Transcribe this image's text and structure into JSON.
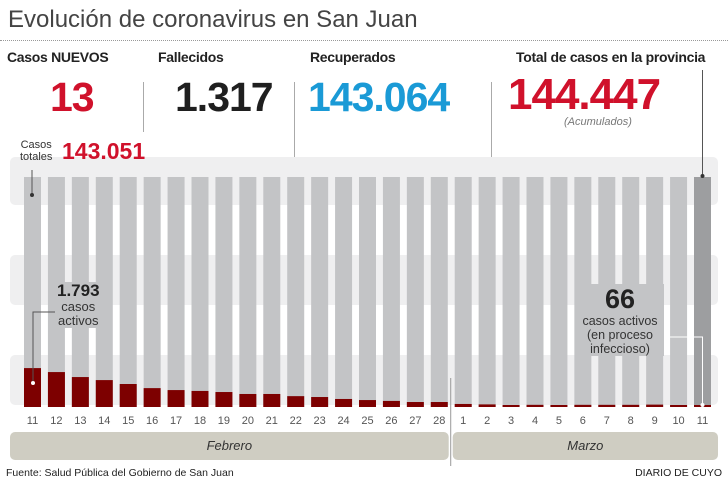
{
  "title": "Evolución de coronavirus en San Juan",
  "stats": {
    "new_label": "Casos NUEVOS",
    "new_value": "13",
    "deaths_label": "Fallecidos",
    "deaths_value": "1.317",
    "recovered_label": "Recuperados",
    "recovered_value": "143.064",
    "total_label": "Total de casos en la provincia",
    "total_value": "144.447",
    "total_note": "(Acumulados)"
  },
  "colors": {
    "red": "#d0112b",
    "blue": "#1a9ad6",
    "dark": "#1f1f1f",
    "bar_gray": "#c3c4c6",
    "bar_last": "#9d9ea0",
    "active_red": "#7d0000",
    "month_band": "#cfcdc2"
  },
  "chart_data": {
    "type": "bar",
    "categories": [
      "11",
      "12",
      "13",
      "14",
      "15",
      "16",
      "17",
      "18",
      "19",
      "20",
      "21",
      "22",
      "23",
      "24",
      "25",
      "26",
      "27",
      "28",
      "1",
      "2",
      "3",
      "4",
      "5",
      "6",
      "7",
      "8",
      "9",
      "10",
      "11"
    ],
    "months": [
      {
        "name": "Febrero"
      },
      {
        "name": "Marzo"
      }
    ],
    "series": [
      {
        "values": [
          1793,
          1610,
          1380,
          1240,
          1060,
          870,
          780,
          740,
          690,
          600,
          600,
          500,
          460,
          370,
          320,
          280,
          230,
          230,
          140,
          120,
          60,
          100,
          90,
          100,
          100,
          100,
          110,
          90,
          66
        ]
      }
    ],
    "annotations": {
      "total_label_top": "Casos",
      "total_label_bottom": "totales",
      "total_start": "143.051",
      "first_active_value": "1.793",
      "first_active_l1": "casos",
      "first_active_l2": "activos",
      "last_active_value": "66",
      "last_active_l1": "casos activos",
      "last_active_l2": "(en proceso",
      "last_active_l3": "infeccioso)"
    },
    "ylim": [
      0,
      10600
    ]
  },
  "footer": {
    "source": "Fuente: Salud Pública del Gobierno de San Juan",
    "brand": "DIARIO DE CUYO"
  }
}
